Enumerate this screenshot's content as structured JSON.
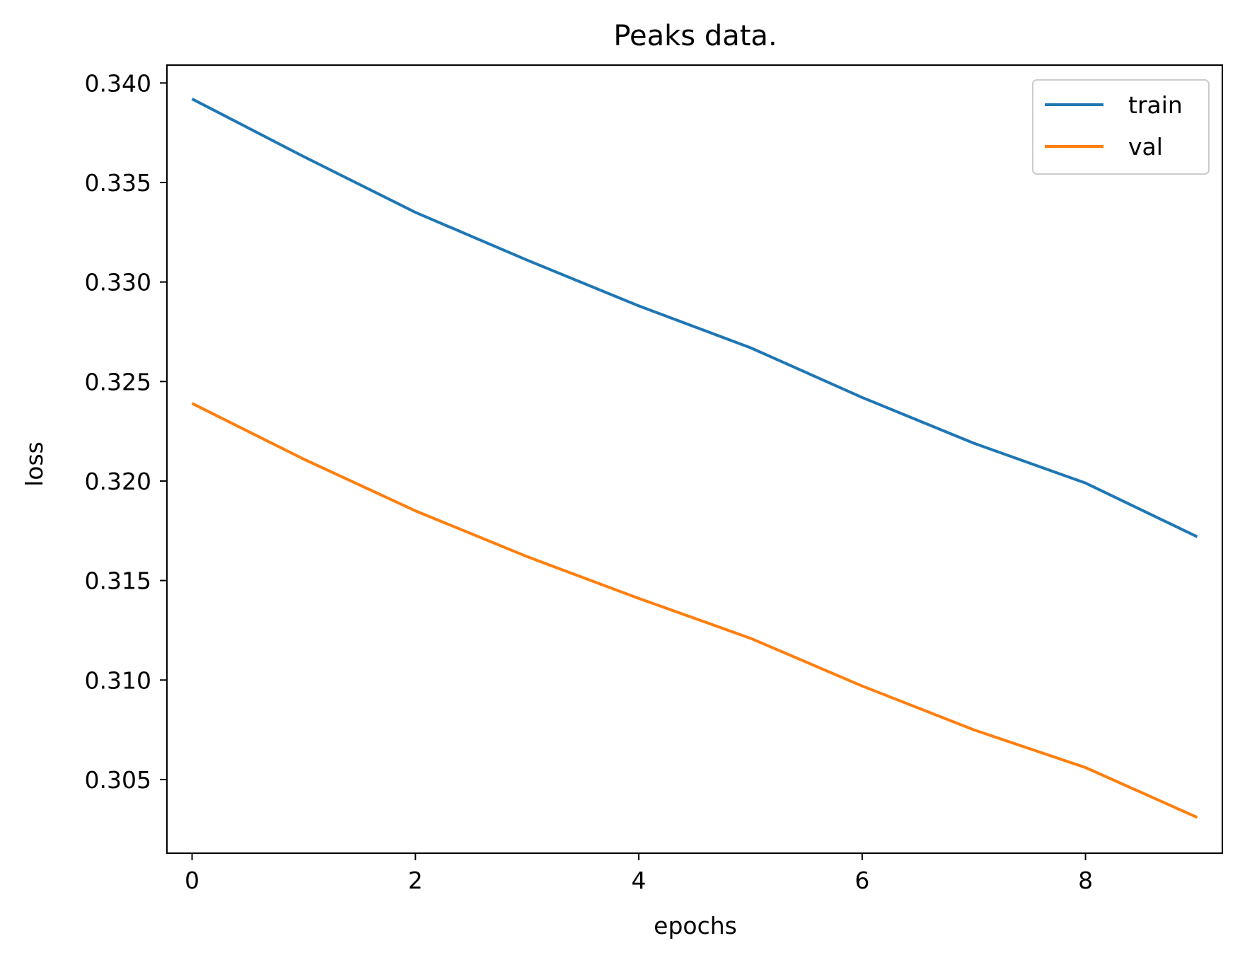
{
  "chart_data": {
    "type": "line",
    "title": "Peaks data.",
    "xlabel": "epochs",
    "ylabel": "loss",
    "x": [
      0,
      1,
      2,
      3,
      4,
      5,
      6,
      7,
      8,
      9
    ],
    "xlim": [
      -0.225,
      9.225
    ],
    "ylim": [
      0.3013,
      0.3409
    ],
    "xticks": [
      0,
      2,
      4,
      6,
      8
    ],
    "yticks": [
      0.305,
      0.31,
      0.315,
      0.32,
      0.325,
      0.33,
      0.335,
      0.34
    ],
    "xtick_labels": [
      "0",
      "2",
      "4",
      "6",
      "8"
    ],
    "ytick_labels": [
      "0.305",
      "0.310",
      "0.315",
      "0.320",
      "0.325",
      "0.330",
      "0.335",
      "0.340"
    ],
    "grid": false,
    "legend_position": "top-right",
    "series": [
      {
        "name": "train",
        "color": "#1f77b4",
        "values": [
          0.3392,
          0.3363,
          0.3335,
          0.3311,
          0.3288,
          0.3267,
          0.3242,
          0.3219,
          0.3199,
          0.3172
        ]
      },
      {
        "name": "val",
        "color": "#ff7f0e",
        "values": [
          0.3239,
          0.3211,
          0.3185,
          0.3162,
          0.3141,
          0.3121,
          0.3097,
          0.3075,
          0.3056,
          0.3031
        ]
      }
    ]
  }
}
